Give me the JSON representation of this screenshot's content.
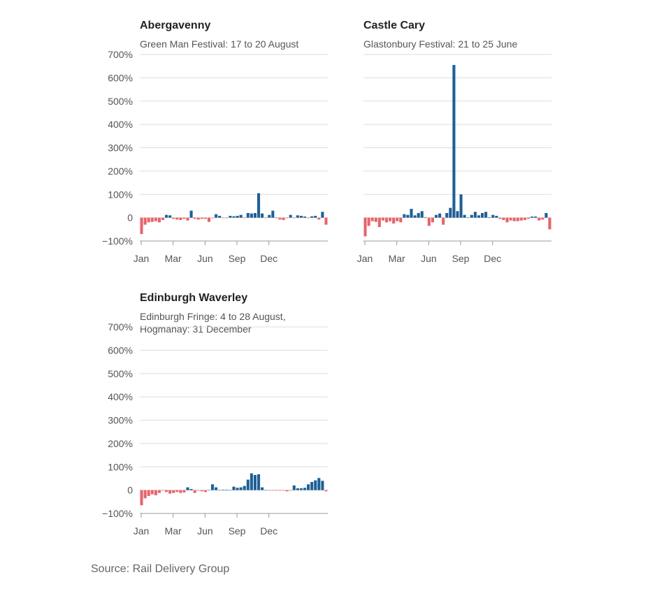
{
  "source": "Source: Rail Delivery Group",
  "colors": {
    "positive": "#1f5f96",
    "negative": "#e8636a",
    "grid": "#dddddd",
    "axis": "#999999"
  },
  "chart_data": [
    {
      "type": "bar",
      "title": "Abergavenny",
      "subtitle": "Green Man Festival: 17 to 20 August",
      "ylim": [
        -100,
        700
      ],
      "y_ticks": [
        -100,
        0,
        100,
        200,
        300,
        400,
        500,
        600,
        700
      ],
      "y_tick_labels": [
        "−100%",
        "0",
        "100%",
        "200%",
        "300%",
        "400%",
        "500%",
        "600%",
        "700%"
      ],
      "x_tick_labels": [
        "Jan",
        "Mar",
        "Jun",
        "Sep",
        "Dec"
      ],
      "x_tick_weeks": [
        0,
        9,
        18,
        27,
        36
      ],
      "grid": true,
      "unit": "%",
      "weeks": 52,
      "values": [
        -70,
        -30,
        -20,
        -18,
        -15,
        -20,
        -10,
        12,
        10,
        -5,
        -8,
        -10,
        -5,
        -12,
        30,
        -5,
        -8,
        -5,
        -5,
        -18,
        -2,
        15,
        8,
        -2,
        -2,
        8,
        6,
        8,
        12,
        -2,
        20,
        18,
        20,
        105,
        18,
        -2,
        12,
        30,
        0,
        -8,
        -10,
        -2,
        12,
        -2,
        10,
        8,
        5,
        -2,
        6,
        8,
        -8,
        25,
        -30
      ]
    },
    {
      "type": "bar",
      "title": "Castle Cary",
      "subtitle": "Glastonbury Festival: 21 to 25 June",
      "ylim": [
        -100,
        700
      ],
      "y_ticks": [
        -100,
        0,
        100,
        200,
        300,
        400,
        500,
        600,
        700
      ],
      "x_tick_labels": [
        "Jan",
        "Mar",
        "Jun",
        "Sep",
        "Dec"
      ],
      "x_tick_weeks": [
        0,
        9,
        18,
        27,
        36
      ],
      "grid": true,
      "unit": "%",
      "weeks": 52,
      "values": [
        -80,
        -35,
        -15,
        -18,
        -40,
        -12,
        -20,
        -15,
        -25,
        -15,
        -20,
        15,
        12,
        38,
        10,
        20,
        28,
        2,
        -35,
        -20,
        12,
        18,
        -30,
        20,
        42,
        655,
        28,
        100,
        12,
        0,
        12,
        25,
        10,
        20,
        25,
        2,
        12,
        8,
        -5,
        -10,
        -20,
        -12,
        -15,
        -15,
        -12,
        -10,
        -5,
        5,
        5,
        -12,
        -8,
        20,
        -50
      ]
    },
    {
      "type": "bar",
      "title": "Edinburgh Waverley",
      "subtitle": "Edinburgh Fringe: 4 to 28 August, Hogmanay: 31 December",
      "ylim": [
        -100,
        700
      ],
      "y_ticks": [
        -100,
        0,
        100,
        200,
        300,
        400,
        500,
        600,
        700
      ],
      "y_tick_labels": [
        "−100%",
        "0",
        "100%",
        "200%",
        "300%",
        "400%",
        "500%",
        "600%",
        "700%"
      ],
      "x_tick_labels": [
        "Jan",
        "Mar",
        "Jun",
        "Sep",
        "Dec"
      ],
      "x_tick_weeks": [
        0,
        9,
        18,
        27,
        36
      ],
      "grid": true,
      "unit": "%",
      "weeks": 52,
      "values": [
        -65,
        -35,
        -25,
        -18,
        -22,
        -12,
        -2,
        -8,
        -15,
        -12,
        -8,
        -12,
        -10,
        12,
        5,
        -12,
        -2,
        -5,
        -8,
        0,
        25,
        12,
        0,
        2,
        2,
        0,
        15,
        10,
        12,
        18,
        45,
        72,
        65,
        68,
        12,
        0,
        -2,
        -2,
        -2,
        -2,
        -2,
        -5,
        -2,
        20,
        8,
        8,
        10,
        25,
        35,
        42,
        52,
        40,
        -5
      ]
    }
  ]
}
